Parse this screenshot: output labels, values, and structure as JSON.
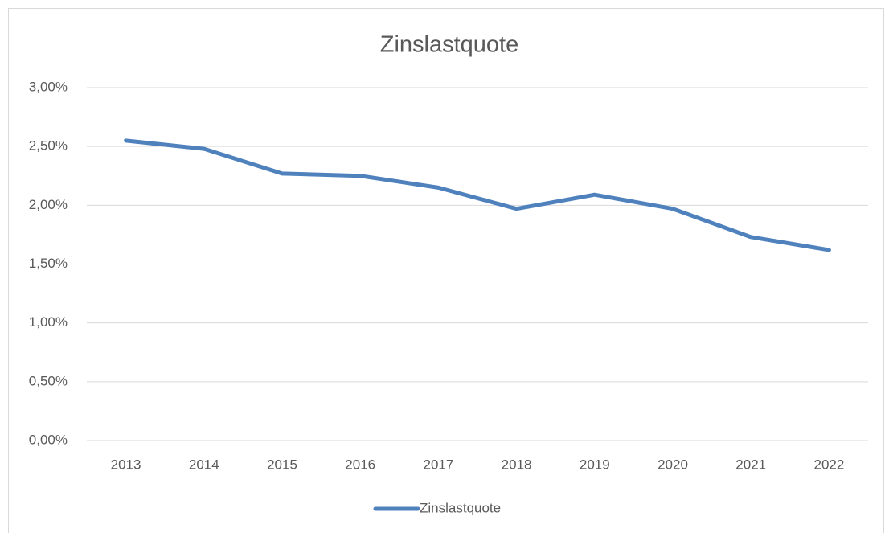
{
  "chart_data": {
    "type": "line",
    "title": "Zinslastquote",
    "categories": [
      "2013",
      "2014",
      "2015",
      "2016",
      "2017",
      "2018",
      "2019",
      "2020",
      "2021",
      "2022"
    ],
    "series": [
      {
        "name": "Zinslastquote",
        "color": "#4f81bd",
        "values": [
          2.55,
          2.48,
          2.27,
          2.25,
          2.15,
          1.97,
          2.09,
          1.97,
          1.73,
          1.62
        ]
      }
    ],
    "ylim": [
      0,
      3
    ],
    "yticks": [
      {
        "value": 0,
        "label": "0,00%"
      },
      {
        "value": 0.5,
        "label": "0,50%"
      },
      {
        "value": 1,
        "label": "1,00%"
      },
      {
        "value": 1.5,
        "label": "1,50%"
      },
      {
        "value": 2,
        "label": "2,00%"
      },
      {
        "value": 2.5,
        "label": "2,50%"
      },
      {
        "value": 3,
        "label": "3,00%"
      }
    ],
    "grid": true,
    "legend": "bottom"
  }
}
